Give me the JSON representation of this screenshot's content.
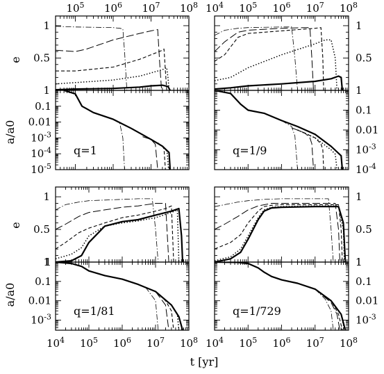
{
  "figure": {
    "xlabel": "t [yr]",
    "ylabel_e": "e",
    "ylabel_a": "a/a0",
    "colors": {
      "line": "#000000",
      "background": "#ffffff"
    }
  },
  "chart_data": [
    {
      "type": "line",
      "panel": "top-left eccentricity",
      "ylabel": "e",
      "xscale": "log",
      "xlim": [
        30000,
        100000000
      ],
      "ylim": [
        0,
        1.15
      ],
      "x_tick_labels": [
        "10^5",
        "10^6",
        "10^7",
        "10^8"
      ],
      "y_tick_labels": [
        "1",
        "0.5",
        "1"
      ],
      "series": [
        {
          "style": "solid-thick",
          "x": [
            30000,
            100000,
            1000000,
            5000000,
            10000000,
            20000000,
            28000000,
            32000000
          ],
          "y": [
            0.01,
            0.02,
            0.03,
            0.05,
            0.07,
            0.08,
            0.06,
            0.0
          ]
        },
        {
          "style": "dotted",
          "x": [
            30000,
            100000,
            1000000,
            5000000,
            10000000,
            20000000,
            26000000,
            28000000,
            30000000
          ],
          "y": [
            0.1,
            0.12,
            0.16,
            0.22,
            0.27,
            0.32,
            0.35,
            0.2,
            0.0
          ]
        },
        {
          "style": "short-dash",
          "x": [
            30000,
            100000,
            1000000,
            5000000,
            10000000,
            20000000,
            22000000,
            24000000,
            26000000
          ],
          "y": [
            0.3,
            0.3,
            0.36,
            0.48,
            0.55,
            0.62,
            0.64,
            0.3,
            0.0
          ]
        },
        {
          "style": "long-dash",
          "x": [
            30000,
            100000,
            200000,
            1000000,
            5000000,
            10000000,
            15000000,
            17000000,
            19000000
          ],
          "y": [
            0.62,
            0.6,
            0.64,
            0.78,
            0.88,
            0.92,
            0.94,
            0.4,
            0.0
          ]
        },
        {
          "style": "dash-dot",
          "x": [
            30000,
            100000,
            1000000,
            1500000,
            1800000,
            2000000,
            2300000
          ],
          "y": [
            0.99,
            0.98,
            0.97,
            0.96,
            0.95,
            0.6,
            0.0
          ]
        }
      ]
    },
    {
      "type": "line",
      "panel": "top-left semimajor axis",
      "label": "q=1",
      "ylabel": "a/a0",
      "xscale": "log",
      "yscale": "log",
      "xlim": [
        30000,
        100000000
      ],
      "ylim": [
        1e-05,
        1
      ],
      "y_tick_labels": [
        "1",
        "0.1",
        "0.01",
        "10^-3",
        "10^-4",
        "10^-5"
      ],
      "series": [
        {
          "style": "solid-thick",
          "x": [
            50000,
            100000,
            150000,
            300000,
            1000000,
            3000000,
            10000000,
            20000000,
            30000000,
            32000000
          ],
          "y": [
            1,
            0.6,
            0.1,
            0.04,
            0.015,
            0.004,
            0.0008,
            0.0003,
            0.00012,
            1e-05
          ]
        },
        {
          "style": "dotted",
          "x": [
            20000000,
            25000000,
            27000000,
            29000000
          ],
          "y": [
            0.0003,
            0.00018,
            0.0001,
            1e-05
          ]
        },
        {
          "style": "short-dash",
          "x": [
            15000000,
            20000000,
            22000000,
            24000000
          ],
          "y": [
            0.0005,
            0.0003,
            0.0002,
            1e-05
          ]
        },
        {
          "style": "long-dash",
          "x": [
            6000000,
            10000000,
            13000000,
            15000000
          ],
          "y": [
            0.0012,
            0.0008,
            0.0004,
            1e-05
          ]
        },
        {
          "style": "dash-dot",
          "x": [
            1000000,
            1500000,
            1800000,
            2000000
          ],
          "y": [
            0.015,
            0.008,
            0.001,
            1e-05
          ]
        }
      ]
    },
    {
      "type": "line",
      "panel": "top-right eccentricity",
      "ylabel": "e",
      "xscale": "log",
      "xlim": [
        10000,
        100000000
      ],
      "ylim": [
        0,
        1.15
      ],
      "x_tick_labels": [
        "10^4",
        "10^5",
        "10^6",
        "10^7",
        "10^8"
      ],
      "y_tick_labels": [
        "1",
        "0.5",
        "1"
      ],
      "series": [
        {
          "style": "solid-thick",
          "x": [
            10000,
            30000,
            100000,
            1000000,
            10000000,
            30000000,
            50000000,
            60000000,
            65000000
          ],
          "y": [
            0.02,
            0.04,
            0.07,
            0.1,
            0.14,
            0.18,
            0.22,
            0.2,
            0.0
          ]
        },
        {
          "style": "dotted",
          "x": [
            10000,
            30000,
            100000,
            1000000,
            10000000,
            20000000,
            30000000,
            40000000,
            45000000
          ],
          "y": [
            0.15,
            0.2,
            0.35,
            0.55,
            0.72,
            0.78,
            0.78,
            0.5,
            0.0
          ]
        },
        {
          "style": "short-dash",
          "x": [
            10000,
            20000,
            50000,
            100000,
            1000000,
            10000000,
            15000000,
            17000000,
            18000000
          ],
          "y": [
            0.45,
            0.55,
            0.82,
            0.88,
            0.92,
            0.96,
            0.97,
            0.5,
            0.0
          ]
        },
        {
          "style": "long-dash",
          "x": [
            10000,
            20000,
            50000,
            100000,
            1000000,
            5000000,
            7000000,
            8000000,
            9000000
          ],
          "y": [
            0.6,
            0.75,
            0.9,
            0.93,
            0.96,
            0.97,
            0.97,
            0.5,
            0.0
          ]
        },
        {
          "style": "dash-dot",
          "x": [
            10000,
            20000,
            50000,
            100000,
            1000000,
            2000000,
            2500000,
            3000000
          ],
          "y": [
            0.85,
            0.93,
            0.96,
            0.97,
            0.98,
            0.98,
            0.5,
            0.0
          ]
        }
      ]
    },
    {
      "type": "line",
      "panel": "top-right semimajor axis",
      "label": "q=1/9",
      "ylabel": "a/a0",
      "xscale": "log",
      "yscale": "log",
      "xlim": [
        10000,
        100000000
      ],
      "ylim": [
        0.0001,
        1
      ],
      "y_tick_labels": [
        "1",
        "0.1",
        "0.01",
        "10^-3",
        "10^-4"
      ],
      "series": [
        {
          "style": "solid-thick",
          "x": [
            10000,
            30000,
            60000,
            100000,
            300000,
            1000000,
            3000000,
            10000000,
            30000000,
            60000000,
            65000000
          ],
          "y": [
            1,
            0.7,
            0.2,
            0.1,
            0.07,
            0.03,
            0.015,
            0.006,
            0.0015,
            0.0005,
            0.0001
          ]
        },
        {
          "style": "dotted",
          "x": [
            3000000,
            10000000,
            30000000,
            40000000,
            45000000
          ],
          "y": [
            0.01,
            0.004,
            0.001,
            0.0006,
            0.0001
          ]
        },
        {
          "style": "short-dash",
          "x": [
            3000000,
            10000000,
            15000000,
            17000000,
            18000000
          ],
          "y": [
            0.01,
            0.004,
            0.002,
            0.001,
            0.0001
          ]
        },
        {
          "style": "long-dash",
          "x": [
            2000000,
            5000000,
            7000000,
            8000000,
            9000000
          ],
          "y": [
            0.013,
            0.007,
            0.004,
            0.002,
            0.0001
          ]
        },
        {
          "style": "dash-dot",
          "x": [
            1000000,
            2000000,
            2500000,
            3000000
          ],
          "y": [
            0.03,
            0.015,
            0.005,
            0.0001
          ]
        }
      ]
    },
    {
      "type": "line",
      "panel": "bottom-left eccentricity",
      "ylabel": "e",
      "xscale": "log",
      "xlim": [
        10000,
        100000000
      ],
      "ylim": [
        0,
        1.15
      ],
      "x_tick_labels": [
        "10^4",
        "10^5",
        "10^6",
        "10^7",
        "10^8"
      ],
      "y_tick_labels": [
        "1",
        "0.5",
        "1"
      ],
      "series": [
        {
          "style": "solid-thick",
          "x": [
            10000,
            30000,
            60000,
            100000,
            300000,
            1000000,
            3000000,
            10000000,
            30000000,
            50000000,
            60000000,
            65000000
          ],
          "y": [
            0.0,
            0.02,
            0.1,
            0.3,
            0.55,
            0.62,
            0.65,
            0.72,
            0.78,
            0.82,
            0.4,
            0.0
          ]
        },
        {
          "style": "dotted",
          "x": [
            10000,
            30000,
            60000,
            100000,
            300000,
            1000000,
            3000000,
            10000000,
            30000000,
            45000000,
            50000000
          ],
          "y": [
            0.05,
            0.12,
            0.22,
            0.4,
            0.55,
            0.6,
            0.63,
            0.68,
            0.76,
            0.8,
            0.0
          ]
        },
        {
          "style": "short-dash",
          "x": [
            10000,
            20000,
            50000,
            100000,
            300000,
            1000000,
            3000000,
            10000000,
            20000000,
            30000000,
            35000000
          ],
          "y": [
            0.2,
            0.3,
            0.45,
            0.52,
            0.6,
            0.68,
            0.72,
            0.78,
            0.82,
            0.86,
            0.0
          ]
        },
        {
          "style": "long-dash",
          "x": [
            10000,
            20000,
            50000,
            100000,
            300000,
            1000000,
            3000000,
            10000000,
            20000000,
            25000000
          ],
          "y": [
            0.5,
            0.58,
            0.7,
            0.76,
            0.8,
            0.84,
            0.86,
            0.9,
            0.9,
            0.0
          ]
        },
        {
          "style": "dash-dot",
          "x": [
            10000,
            20000,
            50000,
            100000,
            300000,
            1000000,
            3000000,
            8000000,
            10000000,
            12000000
          ],
          "y": [
            0.8,
            0.88,
            0.92,
            0.94,
            0.95,
            0.96,
            0.97,
            0.97,
            0.5,
            0.0
          ]
        }
      ]
    },
    {
      "type": "line",
      "panel": "bottom-left semimajor axis",
      "label": "q=1/81",
      "ylabel": "a/a0",
      "xscale": "log",
      "yscale": "log",
      "xlim": [
        10000,
        100000000
      ],
      "ylim": [
        0.0003,
        1
      ],
      "y_tick_labels": [
        "1",
        "0.1",
        "0.01",
        "10^-3"
      ],
      "series": [
        {
          "style": "solid-thick",
          "x": [
            10000,
            30000,
            60000,
            100000,
            300000,
            1000000,
            3000000,
            10000000,
            30000000,
            50000000,
            65000000
          ],
          "y": [
            1,
            0.85,
            0.6,
            0.35,
            0.2,
            0.13,
            0.07,
            0.03,
            0.006,
            0.0015,
            0.0003
          ]
        },
        {
          "style": "dotted",
          "x": [
            10000000,
            30000000,
            45000000,
            50000000
          ],
          "y": [
            0.03,
            0.006,
            0.002,
            0.0003
          ]
        },
        {
          "style": "short-dash",
          "x": [
            10000000,
            20000000,
            30000000,
            35000000
          ],
          "y": [
            0.03,
            0.01,
            0.003,
            0.0003
          ]
        },
        {
          "style": "long-dash",
          "x": [
            10000000,
            20000000,
            25000000
          ],
          "y": [
            0.03,
            0.006,
            0.0003
          ]
        },
        {
          "style": "dash-dot",
          "x": [
            5000000,
            10000000,
            12000000
          ],
          "y": [
            0.05,
            0.01,
            0.0003
          ]
        }
      ]
    },
    {
      "type": "line",
      "panel": "bottom-right eccentricity",
      "ylabel": "e",
      "xscale": "log",
      "xlim": [
        10000,
        100000000
      ],
      "ylim": [
        0,
        1.15
      ],
      "x_tick_labels": [
        "10^4",
        "10^5",
        "10^6",
        "10^7",
        "10^8"
      ],
      "y_tick_labels": [
        "1",
        "0.5",
        "1"
      ],
      "series": [
        {
          "style": "solid-thick",
          "x": [
            10000,
            30000,
            60000,
            100000,
            200000,
            300000,
            500000,
            1000000,
            10000000,
            50000000,
            70000000,
            80000000
          ],
          "y": [
            0.0,
            0.05,
            0.15,
            0.35,
            0.65,
            0.78,
            0.83,
            0.84,
            0.85,
            0.85,
            0.6,
            0.0
          ]
        },
        {
          "style": "dotted",
          "x": [
            10000,
            30000,
            60000,
            100000,
            200000,
            300000,
            500000,
            1000000,
            10000000,
            50000000,
            70000000,
            75000000
          ],
          "y": [
            0.02,
            0.08,
            0.2,
            0.4,
            0.68,
            0.8,
            0.84,
            0.85,
            0.86,
            0.86,
            0.5,
            0.0
          ]
        },
        {
          "style": "short-dash",
          "x": [
            10000,
            30000,
            60000,
            100000,
            200000,
            300000,
            500000,
            1000000,
            10000000,
            50000000,
            60000000,
            65000000
          ],
          "y": [
            0.2,
            0.3,
            0.42,
            0.6,
            0.78,
            0.85,
            0.87,
            0.88,
            0.88,
            0.88,
            0.5,
            0.0
          ]
        },
        {
          "style": "long-dash",
          "x": [
            10000,
            20000,
            50000,
            100000,
            200000,
            500000,
            1000000,
            10000000,
            40000000,
            50000000,
            55000000
          ],
          "y": [
            0.5,
            0.58,
            0.7,
            0.8,
            0.86,
            0.9,
            0.9,
            0.9,
            0.9,
            0.5,
            0.0
          ]
        },
        {
          "style": "dash-dot",
          "x": [
            10000,
            20000,
            50000,
            100000,
            300000,
            1000000,
            10000000,
            25000000,
            30000000,
            35000000
          ],
          "y": [
            0.85,
            0.88,
            0.92,
            0.94,
            0.96,
            0.97,
            0.97,
            0.97,
            0.5,
            0.0
          ]
        }
      ]
    },
    {
      "type": "line",
      "panel": "bottom-right semimajor axis",
      "label": "q=1/729",
      "ylabel": "a/a0",
      "xscale": "log",
      "yscale": "log",
      "xlim": [
        10000,
        100000000
      ],
      "ylim": [
        0.0003,
        1
      ],
      "y_tick_labels": [
        "1",
        "0.1",
        "0.01",
        "10^-3"
      ],
      "series": [
        {
          "style": "solid-thick",
          "x": [
            10000,
            50000,
            100000,
            200000,
            300000,
            500000,
            1000000,
            3000000,
            10000000,
            30000000,
            60000000,
            80000000
          ],
          "y": [
            1,
            0.97,
            0.85,
            0.5,
            0.3,
            0.18,
            0.12,
            0.08,
            0.04,
            0.01,
            0.002,
            0.0003
          ]
        },
        {
          "style": "dotted",
          "x": [
            10000000,
            30000000,
            60000000,
            75000000
          ],
          "y": [
            0.04,
            0.01,
            0.002,
            0.0003
          ]
        },
        {
          "style": "short-dash",
          "x": [
            10000000,
            30000000,
            50000000,
            65000000
          ],
          "y": [
            0.04,
            0.01,
            0.002,
            0.0003
          ]
        },
        {
          "style": "long-dash",
          "x": [
            10000000,
            30000000,
            45000000,
            55000000
          ],
          "y": [
            0.04,
            0.008,
            0.002,
            0.0003
          ]
        },
        {
          "style": "dash-dot",
          "x": [
            10000000,
            20000000,
            30000000,
            35000000
          ],
          "y": [
            0.04,
            0.012,
            0.003,
            0.0003
          ]
        }
      ]
    }
  ]
}
